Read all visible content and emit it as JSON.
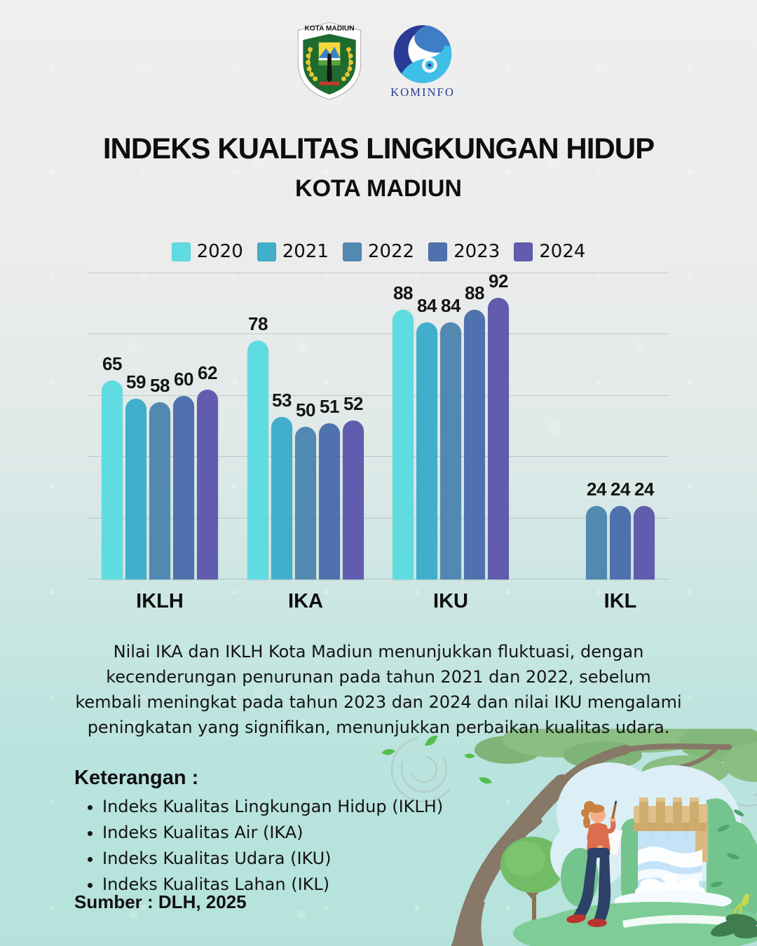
{
  "header": {
    "kota_madiun_label": "KOTA MADIUN",
    "kominfo_label": "KOMINFO"
  },
  "title": {
    "line1": "INDEKS KUALITAS LINGKUNGAN HIDUP",
    "line2": "KOTA MADIUN"
  },
  "chart_data": {
    "type": "bar",
    "categories": [
      "IKLH",
      "IKA",
      "IKU",
      "IKL"
    ],
    "series": [
      {
        "name": "2020",
        "color": "#5FDCE1",
        "values": [
          65,
          78,
          88,
          null
        ]
      },
      {
        "name": "2021",
        "color": "#41AECB",
        "values": [
          59,
          53,
          84,
          null
        ]
      },
      {
        "name": "2022",
        "color": "#5189B0",
        "values": [
          58,
          50,
          84,
          24
        ]
      },
      {
        "name": "2023",
        "color": "#4F71AD",
        "values": [
          60,
          51,
          88,
          24
        ]
      },
      {
        "name": "2024",
        "color": "#615CAD",
        "values": [
          62,
          52,
          92,
          24
        ]
      }
    ],
    "ylim": [
      0,
      100
    ],
    "gridline_values": [
      0,
      20,
      40,
      60,
      80,
      100
    ],
    "grid": true,
    "legend_position": "top",
    "value_labels": true
  },
  "description": "Nilai IKA dan IKLH Kota Madiun menunjukkan fluktuasi, dengan\nkecenderungan penurunan pada tahun 2021 dan 2022, sebelum\nkembali meningkat pada tahun 2023 dan 2024 dan nilai IKU mengalami\npeningkatan yang signifikan, menunjukkan perbaikan kualitas udara.",
  "keterangan": {
    "heading": "Keterangan :",
    "items": [
      "Indeks Kualitas Lingkungan Hidup (IKLH)",
      "Indeks Kualitas Air (IKA)",
      "Indeks Kualitas Udara (IKU)",
      "Indeks Kualitas Lahan (IKL)"
    ]
  },
  "source": "Sumber : DLH, 2025"
}
